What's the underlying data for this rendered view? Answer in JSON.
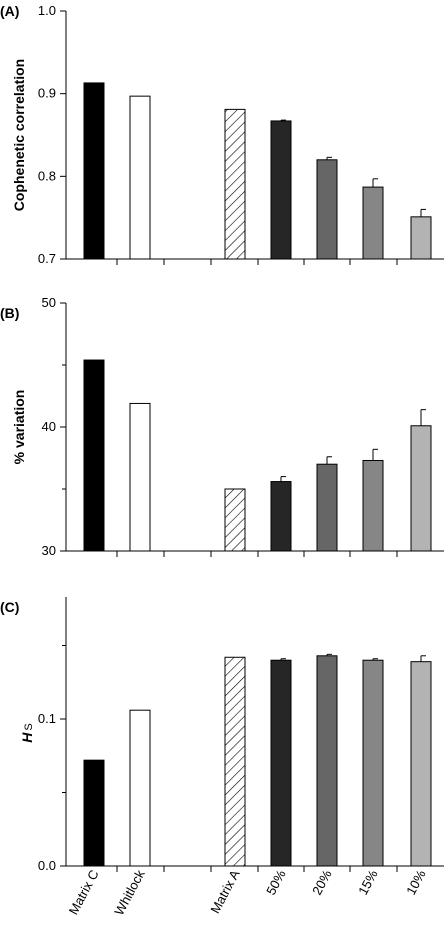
{
  "categories": [
    "Matrix C",
    "Whitlock",
    "Matrix A",
    "50%",
    "20%",
    "15%",
    "10%"
  ],
  "colors": {
    "Matrix C": "#000000",
    "Whitlock": "#ffffff",
    "Matrix A": "hatched",
    "50%": "#262626",
    "20%": "#666666",
    "15%": "#868686",
    "10%": "#b3b3b3"
  },
  "chart_data": [
    {
      "type": "bar",
      "panel": "(A)",
      "ylabel": "Cophenetic correlation",
      "ylim": [
        0.7,
        1.0
      ],
      "yticks": [
        "0.7",
        "0.8",
        "0.9",
        "1.0"
      ],
      "ytick_values": [
        0.7,
        0.8,
        0.9,
        1.0
      ],
      "categories": [
        "Matrix C",
        "Whitlock",
        "Matrix A",
        "50%",
        "20%",
        "15%",
        "10%"
      ],
      "values": [
        0.913,
        0.897,
        0.881,
        0.867,
        0.82,
        0.787,
        0.751
      ],
      "errors": [
        0,
        0,
        0,
        0.001,
        0.003,
        0.01,
        0.009
      ],
      "grid": false
    },
    {
      "type": "bar",
      "panel": "(B)",
      "ylabel": "% variation",
      "ylim": [
        30,
        50
      ],
      "yticks": [
        "30",
        "40",
        "50"
      ],
      "ytick_values": [
        30,
        40,
        50
      ],
      "minor_ticks": [
        35,
        45
      ],
      "categories": [
        "Matrix C",
        "Whitlock",
        "Matrix A",
        "50%",
        "20%",
        "15%",
        "10%"
      ],
      "values": [
        45.4,
        41.9,
        35.0,
        35.6,
        37.0,
        37.3,
        40.1
      ],
      "errors": [
        0,
        0,
        0,
        0.4,
        0.6,
        0.9,
        1.3
      ],
      "grid": false
    },
    {
      "type": "bar",
      "panel": "(C)",
      "ylabel": "H",
      "ylabel_sub": "S",
      "ylim": [
        0.0,
        0.183
      ],
      "yticks": [
        "0.0",
        "0.1"
      ],
      "ytick_values": [
        0.0,
        0.1
      ],
      "minor_ticks": [
        0.05,
        0.15
      ],
      "categories": [
        "Matrix C",
        "Whitlock",
        "Matrix A",
        "50%",
        "20%",
        "15%",
        "10%"
      ],
      "values": [
        0.072,
        0.106,
        0.142,
        0.14,
        0.143,
        0.14,
        0.139
      ],
      "errors": [
        0,
        0,
        0,
        0.001,
        0.001,
        0.001,
        0.004
      ],
      "grid": false
    }
  ]
}
